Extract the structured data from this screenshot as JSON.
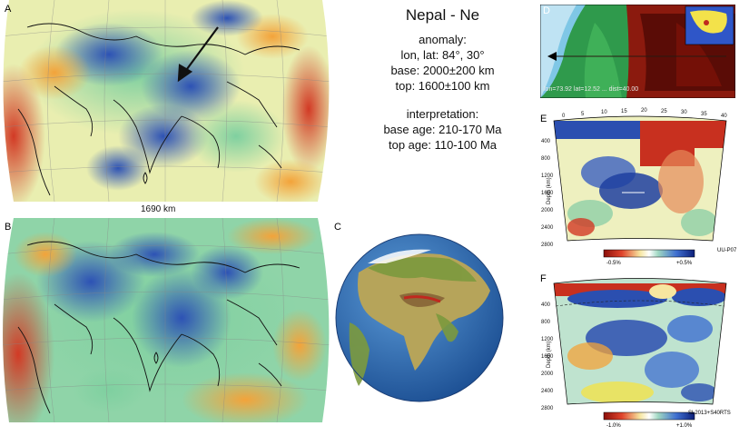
{
  "panels": {
    "a": {
      "letter": "A",
      "scale_label": "1690 km"
    },
    "b": {
      "letter": "B"
    },
    "c": {
      "letter": "C"
    },
    "d": {
      "letter": "D",
      "readout": "lon=73.92 lat=12.52 ... dist=40.00"
    },
    "e": {
      "letter": "E",
      "model": "UU-P07",
      "depth_axis_label": "Depth (km)",
      "depth_ticks": [
        "400",
        "800",
        "1200",
        "1600",
        "2000",
        "2400",
        "2800"
      ],
      "distance_ticks": [
        "0",
        "5",
        "10",
        "15",
        "20",
        "25",
        "30",
        "35",
        "40"
      ],
      "scale_min": "-0.5%",
      "scale_max": "+0.5%"
    },
    "f": {
      "letter": "F",
      "model": "SL2013+S40RTS",
      "depth_axis_label": "Depth (km)",
      "depth_ticks": [
        "400",
        "800",
        "1200",
        "1600",
        "2000",
        "2400",
        "2800"
      ],
      "scale_min": "-1.0%",
      "scale_max": "+1.0%"
    }
  },
  "info": {
    "title": "Nepal - Ne",
    "anomaly_heading": "anomaly:",
    "lonlat": "lon, lat: 84°, 30°",
    "base": "base: 2000±200 km",
    "top": "top: 1600±100 km",
    "interpretation_heading": "interpretation:",
    "base_age": "base age: 210-170 Ma",
    "top_age": "top age: 110-100 Ma"
  },
  "colors": {
    "fast": "#2b4fb0",
    "slow": "#c0281e",
    "neutral": "#f3efb0",
    "green": "#7fcf9a",
    "ocean": "#2a6fb8"
  }
}
